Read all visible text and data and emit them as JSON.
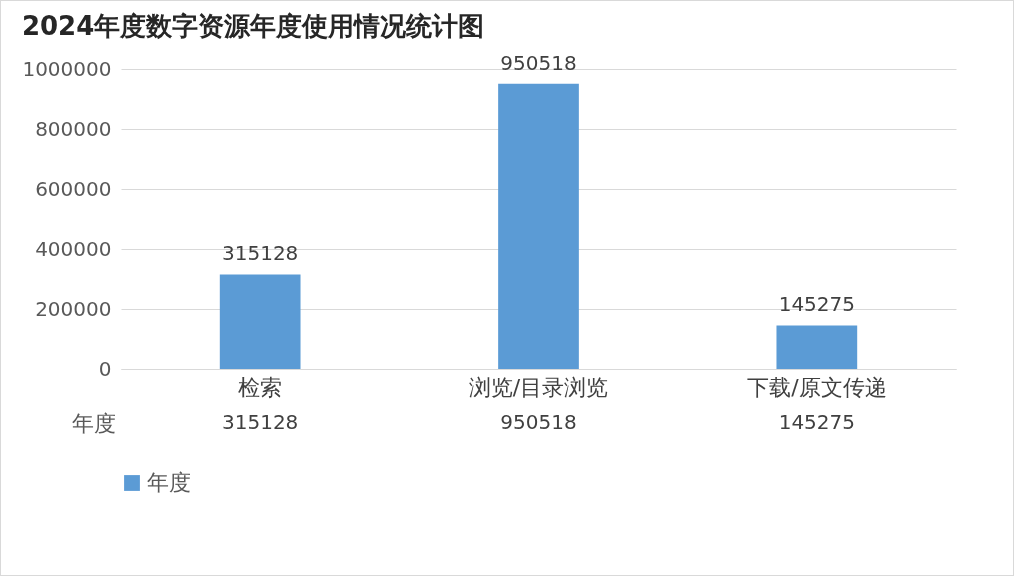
{
  "chart_data": {
    "type": "bar",
    "title": "2024年度数字资源年度使用情况统计图",
    "categories": [
      "检索",
      "浏览/目录浏览",
      "下载/原文传递"
    ],
    "series": [
      {
        "name": "年度",
        "color": "#5b9bd5",
        "values": [
          315128,
          950518,
          145275
        ],
        "value_labels": [
          "315128",
          "950518",
          "145275"
        ]
      }
    ],
    "annotations": [
      "315128",
      "950518",
      "145275"
    ],
    "ylim": [
      0,
      1000000
    ],
    "yticks": [
      0,
      200000,
      400000,
      600000,
      800000,
      1000000
    ],
    "grid": "y",
    "data_labels": true,
    "legend": "bottom"
  }
}
